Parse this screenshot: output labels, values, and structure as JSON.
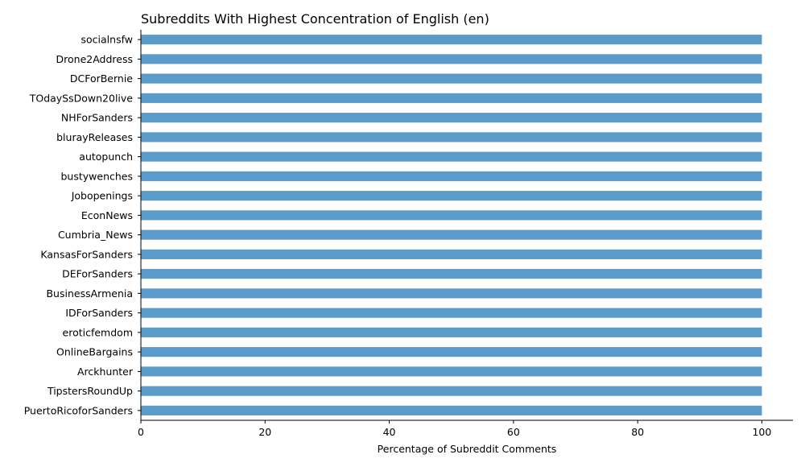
{
  "chart_data": {
    "type": "bar",
    "orientation": "horizontal",
    "title": "Subreddits With Highest Concentration of English (en)",
    "xlabel": "Percentage of Subreddit Comments",
    "ylabel": "",
    "xlim": [
      0,
      105
    ],
    "xticks": [
      "0",
      "20",
      "40",
      "60",
      "80",
      "100"
    ],
    "grid": false,
    "bar_color": "#5b9bca",
    "categories": [
      "socialnsfw",
      "Drone2Address",
      "DCForBernie",
      "TOdaySsDown20live",
      "NHForSanders",
      "blurayReleases",
      "autopunch",
      "bustywenches",
      "Jobopenings",
      "EconNews",
      "Cumbria_News",
      "KansasForSanders",
      "DEForSanders",
      "BusinessArmenia",
      "IDForSanders",
      "eroticfemdom",
      "OnlineBargains",
      "Arckhunter",
      "TipstersRoundUp",
      "PuertoRicoforSanders"
    ],
    "values": [
      100,
      100,
      100,
      100,
      100,
      100,
      100,
      100,
      100,
      100,
      100,
      100,
      100,
      100,
      100,
      100,
      100,
      100,
      100,
      100
    ]
  }
}
